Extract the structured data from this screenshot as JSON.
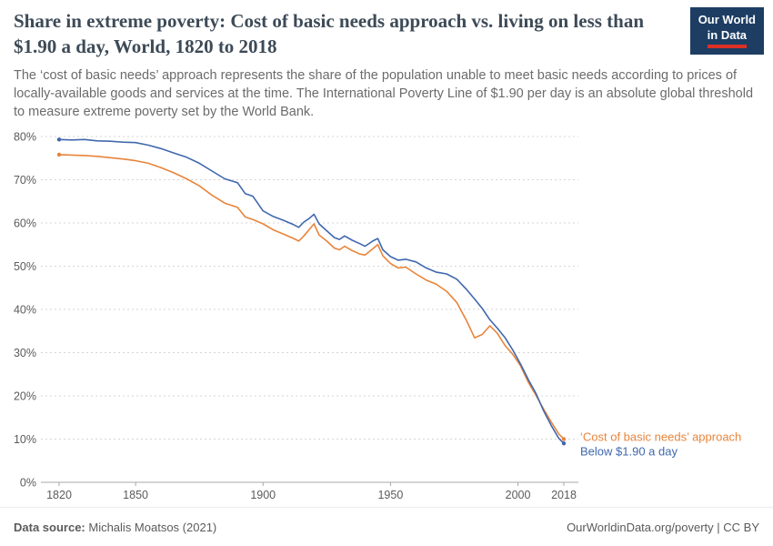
{
  "header": {
    "title": "Share in extreme poverty: Cost of basic needs approach vs. living on less than $1.90 a day, World, 1820 to 2018",
    "subtitle": "The ‘cost of basic needs’ approach represents the share of the population unable to meet basic needs according to prices of locally-available goods and services at the time. The International Poverty Line of $1.90 per day is an absolute global threshold to measure extreme poverty set by the World Bank.",
    "logo": {
      "line1": "Our World",
      "line2": "in Data"
    }
  },
  "footer": {
    "source_label": "Data source:",
    "source_value": " Michalis Moatsos (2021)",
    "right_text": "OurWorldinData.org/poverty | CC BY"
  },
  "colors": {
    "accent_navy": "#1d3d63",
    "accent_red": "#dc3025",
    "grid": "#d5d5d5",
    "axis": "#a8a8a8",
    "tick_text": "#5b5b5b"
  },
  "chart_data": {
    "type": "line",
    "title": "Share in extreme poverty: Cost of basic needs approach vs. living on less than $1.90 a day, World, 1820 to 2018",
    "xlabel": "",
    "ylabel": "",
    "xlim": [
      1820,
      2018
    ],
    "ylim": [
      0,
      80
    ],
    "grid": "horizontal-dashed",
    "legend_position": "end-labels-right",
    "ytick_values": [
      0,
      10,
      20,
      30,
      40,
      50,
      60,
      70,
      80
    ],
    "ytick_labels": [
      "0%",
      "10%",
      "20%",
      "30%",
      "40%",
      "50%",
      "60%",
      "70%",
      "80%"
    ],
    "xtick_values": [
      1820,
      1850,
      1900,
      1950,
      2000,
      2018
    ],
    "xtick_labels": [
      "1820",
      "1850",
      "1900",
      "1950",
      "2000",
      "2018"
    ],
    "x": [
      1820,
      1825,
      1830,
      1835,
      1840,
      1845,
      1850,
      1855,
      1860,
      1865,
      1870,
      1875,
      1880,
      1885,
      1890,
      1893,
      1896,
      1900,
      1904,
      1908,
      1912,
      1914,
      1916,
      1918,
      1920,
      1922,
      1925,
      1928,
      1930,
      1932,
      1935,
      1938,
      1940,
      1943,
      1945,
      1947,
      1950,
      1953,
      1956,
      1960,
      1964,
      1968,
      1972,
      1976,
      1980,
      1983,
      1986,
      1989,
      1992,
      1995,
      1998,
      2001,
      2004,
      2007,
      2010,
      2013,
      2016,
      2018
    ],
    "series": [
      {
        "name": "‘Cost of basic needs’ approach",
        "color": "#e8843a",
        "values": [
          75.8,
          75.7,
          75.6,
          75.4,
          75.1,
          74.8,
          74.4,
          73.8,
          72.8,
          71.6,
          70.2,
          68.6,
          66.4,
          64.6,
          63.6,
          61.4,
          60.8,
          59.8,
          58.4,
          57.4,
          56.4,
          55.8,
          57.0,
          58.4,
          59.8,
          57.2,
          55.8,
          54.2,
          53.8,
          54.6,
          53.6,
          52.8,
          52.6,
          54.0,
          55.0,
          52.4,
          50.6,
          49.6,
          49.8,
          48.2,
          46.8,
          45.8,
          44.2,
          41.6,
          37.2,
          33.4,
          34.2,
          36.2,
          34.4,
          31.6,
          29.6,
          27.0,
          23.2,
          20.2,
          17.0,
          14.0,
          11.2,
          10.0
        ]
      },
      {
        "name": "Below $1.90 a day",
        "color": "#4068ad",
        "values": [
          79.3,
          79.2,
          79.3,
          79.0,
          78.9,
          78.7,
          78.6,
          78.0,
          77.2,
          76.2,
          75.2,
          73.8,
          72.0,
          70.2,
          69.3,
          66.8,
          66.2,
          62.8,
          61.5,
          60.6,
          59.6,
          59.0,
          60.2,
          61.0,
          62.0,
          59.8,
          58.2,
          56.6,
          56.2,
          57.0,
          56.0,
          55.2,
          54.6,
          55.8,
          56.4,
          53.8,
          52.2,
          51.4,
          51.6,
          51.0,
          49.6,
          48.6,
          48.2,
          47.0,
          44.5,
          42.4,
          40.2,
          37.6,
          35.6,
          33.4,
          30.6,
          27.4,
          23.8,
          20.6,
          16.6,
          13.2,
          10.2,
          9.0
        ]
      }
    ]
  }
}
